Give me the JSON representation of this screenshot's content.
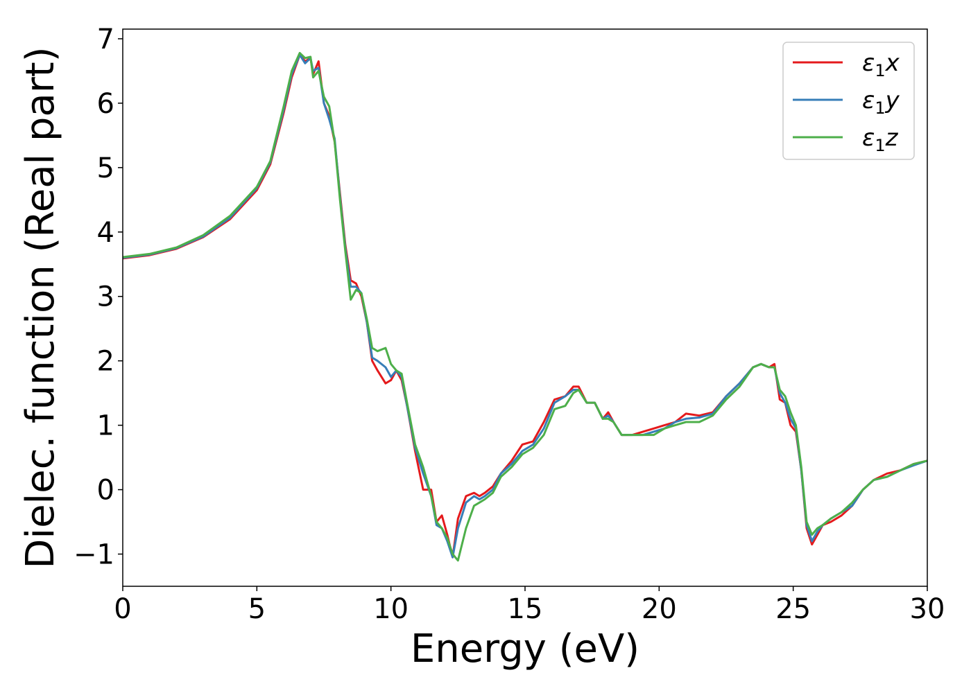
{
  "chart_data": {
    "type": "line",
    "title": "",
    "xlabel": "Energy (eV)",
    "ylabel": "Dielec. function (Real part)",
    "xlim": [
      0,
      30
    ],
    "ylim": [
      -1.5,
      7.15
    ],
    "xticks": [
      0,
      5,
      10,
      15,
      20,
      25,
      30
    ],
    "xtick_labels": [
      "0",
      "5",
      "10",
      "15",
      "20",
      "25",
      "30"
    ],
    "yticks": [
      -1,
      0,
      1,
      2,
      3,
      4,
      5,
      6,
      7
    ],
    "ytick_labels": [
      "−1",
      "0",
      "1",
      "2",
      "3",
      "4",
      "5",
      "6",
      "7"
    ],
    "grid": false,
    "legend_position": "top-right",
    "series": [
      {
        "name_symbol": "ε",
        "name_sub": "1",
        "name_suffix": "x",
        "color": "#e41a1c",
        "x": [
          0,
          1,
          2,
          3,
          4,
          5,
          5.5,
          6,
          6.3,
          6.6,
          6.8,
          7.0,
          7.1,
          7.3,
          7.5,
          7.7,
          7.9,
          8.1,
          8.3,
          8.5,
          8.7,
          8.9,
          9.1,
          9.3,
          9.5,
          9.8,
          10.0,
          10.2,
          10.4,
          10.6,
          10.9,
          11.2,
          11.5,
          11.7,
          11.9,
          12.1,
          12.3,
          12.5,
          12.8,
          13.1,
          13.3,
          13.5,
          13.8,
          14.1,
          14.5,
          14.9,
          15.3,
          15.7,
          16.1,
          16.5,
          16.8,
          17.0,
          17.3,
          17.6,
          17.9,
          18.1,
          18.3,
          18.6,
          19.0,
          19.4,
          19.8,
          20.2,
          20.6,
          21.0,
          21.5,
          22.0,
          22.5,
          23.0,
          23.5,
          23.8,
          24.1,
          24.3,
          24.5,
          24.7,
          24.9,
          25.1,
          25.3,
          25.5,
          25.7,
          25.9,
          26.1,
          26.4,
          26.8,
          27.2,
          27.6,
          28.0,
          28.5,
          29.0,
          29.5,
          30.0
        ],
        "values": [
          3.59,
          3.64,
          3.74,
          3.92,
          4.2,
          4.65,
          5.05,
          5.85,
          6.4,
          6.75,
          6.65,
          6.7,
          6.45,
          6.65,
          6.0,
          5.8,
          5.4,
          4.6,
          3.8,
          3.25,
          3.2,
          3.0,
          2.6,
          2.0,
          1.85,
          1.65,
          1.7,
          1.85,
          1.7,
          1.3,
          0.6,
          0.0,
          0.0,
          -0.5,
          -0.4,
          -0.7,
          -1.05,
          -0.45,
          -0.1,
          -0.05,
          -0.1,
          -0.05,
          0.05,
          0.25,
          0.45,
          0.7,
          0.75,
          1.05,
          1.4,
          1.45,
          1.6,
          1.6,
          1.35,
          1.35,
          1.1,
          1.2,
          1.05,
          0.85,
          0.85,
          0.9,
          0.95,
          1.0,
          1.05,
          1.18,
          1.15,
          1.2,
          1.45,
          1.65,
          1.9,
          1.95,
          1.9,
          1.95,
          1.4,
          1.35,
          1.0,
          0.9,
          0.3,
          -0.6,
          -0.85,
          -0.7,
          -0.55,
          -0.5,
          -0.4,
          -0.25,
          0.0,
          0.15,
          0.25,
          0.3,
          0.4,
          0.45
        ]
      },
      {
        "name_symbol": "ε",
        "name_sub": "1",
        "name_suffix": "y",
        "color": "#377eb8",
        "x": [
          0,
          1,
          2,
          3,
          4,
          5,
          5.5,
          6,
          6.3,
          6.6,
          6.8,
          7.0,
          7.1,
          7.3,
          7.5,
          7.7,
          7.9,
          8.1,
          8.3,
          8.5,
          8.7,
          8.9,
          9.1,
          9.3,
          9.5,
          9.8,
          10.0,
          10.2,
          10.4,
          10.6,
          10.9,
          11.2,
          11.5,
          11.7,
          11.9,
          12.1,
          12.3,
          12.5,
          12.8,
          13.1,
          13.3,
          13.5,
          13.8,
          14.1,
          14.5,
          14.9,
          15.3,
          15.7,
          16.1,
          16.5,
          16.8,
          17.0,
          17.3,
          17.6,
          17.9,
          18.1,
          18.3,
          18.6,
          19.0,
          19.4,
          19.8,
          20.2,
          20.6,
          21.0,
          21.5,
          22.0,
          22.5,
          23.0,
          23.5,
          23.8,
          24.1,
          24.3,
          24.5,
          24.7,
          24.9,
          25.1,
          25.3,
          25.5,
          25.7,
          25.9,
          26.1,
          26.4,
          26.8,
          27.2,
          27.6,
          28.0,
          28.5,
          29.0,
          29.5,
          30.0
        ],
        "values": [
          3.6,
          3.65,
          3.75,
          3.93,
          4.22,
          4.68,
          5.08,
          5.9,
          6.45,
          6.75,
          6.62,
          6.7,
          6.5,
          6.55,
          6.0,
          5.75,
          5.45,
          4.55,
          3.75,
          3.15,
          3.15,
          3.05,
          2.6,
          2.05,
          2.0,
          1.9,
          1.75,
          1.85,
          1.75,
          1.3,
          0.65,
          0.25,
          -0.1,
          -0.55,
          -0.6,
          -0.8,
          -1.05,
          -0.6,
          -0.2,
          -0.1,
          -0.15,
          -0.1,
          0.0,
          0.25,
          0.4,
          0.6,
          0.7,
          0.95,
          1.35,
          1.45,
          1.55,
          1.55,
          1.35,
          1.35,
          1.1,
          1.15,
          1.05,
          0.85,
          0.85,
          0.85,
          0.9,
          0.95,
          1.05,
          1.1,
          1.12,
          1.18,
          1.45,
          1.65,
          1.9,
          1.95,
          1.9,
          1.9,
          1.5,
          1.35,
          1.1,
          0.95,
          0.3,
          -0.55,
          -0.8,
          -0.65,
          -0.55,
          -0.45,
          -0.35,
          -0.25,
          0.0,
          0.15,
          0.2,
          0.3,
          0.38,
          0.45
        ]
      },
      {
        "name_symbol": "ε",
        "name_sub": "1",
        "name_suffix": "z",
        "color": "#4daf4a",
        "x": [
          0,
          1,
          2,
          3,
          4,
          5,
          5.5,
          6,
          6.3,
          6.6,
          6.8,
          7.0,
          7.1,
          7.3,
          7.5,
          7.7,
          7.9,
          8.1,
          8.3,
          8.5,
          8.7,
          8.9,
          9.1,
          9.3,
          9.5,
          9.8,
          10.0,
          10.2,
          10.4,
          10.6,
          10.9,
          11.2,
          11.5,
          11.7,
          11.9,
          12.1,
          12.3,
          12.5,
          12.8,
          13.1,
          13.3,
          13.5,
          13.8,
          14.1,
          14.5,
          14.9,
          15.3,
          15.7,
          16.1,
          16.5,
          16.8,
          17.0,
          17.3,
          17.6,
          17.9,
          18.1,
          18.3,
          18.6,
          19.0,
          19.4,
          19.8,
          20.2,
          20.6,
          21.0,
          21.5,
          22.0,
          22.5,
          23.0,
          23.5,
          23.8,
          24.1,
          24.3,
          24.5,
          24.7,
          24.9,
          25.1,
          25.3,
          25.5,
          25.7,
          25.9,
          26.1,
          26.4,
          26.8,
          27.2,
          27.6,
          28.0,
          28.5,
          29.0,
          29.5,
          30.0
        ],
        "values": [
          3.61,
          3.66,
          3.76,
          3.95,
          4.25,
          4.7,
          5.1,
          5.95,
          6.5,
          6.78,
          6.7,
          6.72,
          6.4,
          6.5,
          6.1,
          5.95,
          5.4,
          4.5,
          3.7,
          2.95,
          3.1,
          3.05,
          2.65,
          2.2,
          2.15,
          2.2,
          1.95,
          1.85,
          1.8,
          1.35,
          0.7,
          0.35,
          -0.1,
          -0.5,
          -0.6,
          -0.75,
          -1.0,
          -1.1,
          -0.6,
          -0.25,
          -0.2,
          -0.15,
          -0.05,
          0.2,
          0.35,
          0.55,
          0.65,
          0.85,
          1.25,
          1.3,
          1.5,
          1.55,
          1.35,
          1.35,
          1.1,
          1.1,
          1.05,
          0.85,
          0.85,
          0.85,
          0.85,
          0.95,
          1.0,
          1.05,
          1.05,
          1.15,
          1.4,
          1.6,
          1.9,
          1.95,
          1.9,
          1.9,
          1.55,
          1.45,
          1.2,
          1.0,
          0.35,
          -0.5,
          -0.7,
          -0.6,
          -0.55,
          -0.45,
          -0.35,
          -0.2,
          0.0,
          0.15,
          0.2,
          0.3,
          0.4,
          0.45
        ]
      }
    ]
  }
}
